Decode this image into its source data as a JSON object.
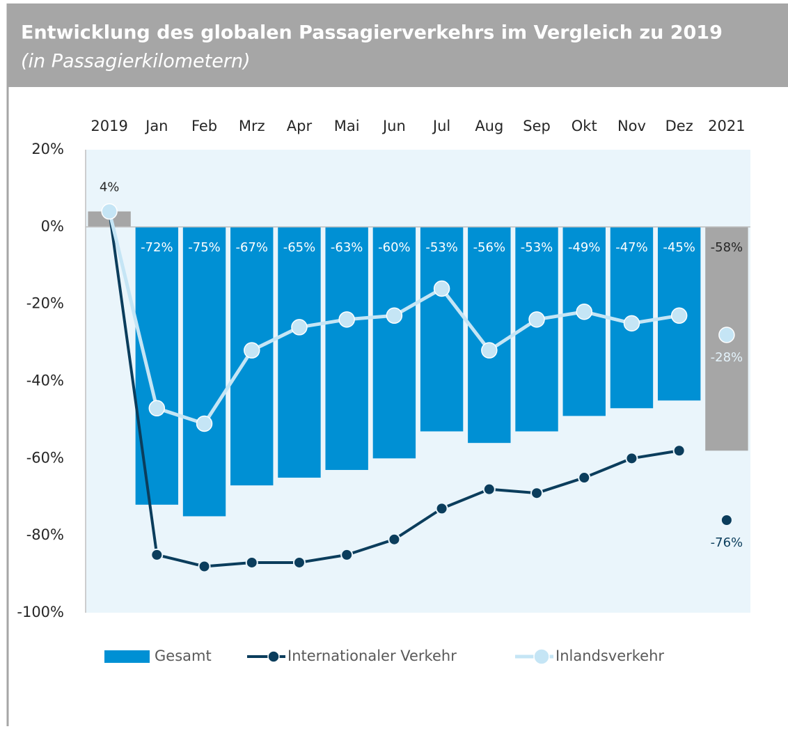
{
  "chart_data": {
    "type": "bar",
    "title": "Entwicklung des globalen Passagierverkehrs im Vergleich zu 2019",
    "subtitle": "(in Passagierkilometern)",
    "categories": [
      "2019",
      "Jan",
      "Feb",
      "Mrz",
      "Apr",
      "Mai",
      "Jun",
      "Jul",
      "Aug",
      "Sep",
      "Okt",
      "Nov",
      "Dez",
      "2021"
    ],
    "series": [
      {
        "name": "Gesamt",
        "type": "bar",
        "color": "#0090d4",
        "colors": [
          "#a6a6a6",
          "#0090d4",
          "#0090d4",
          "#0090d4",
          "#0090d4",
          "#0090d4",
          "#0090d4",
          "#0090d4",
          "#0090d4",
          "#0090d4",
          "#0090d4",
          "#0090d4",
          "#0090d4",
          "#a6a6a6"
        ],
        "values": [
          4,
          -72,
          -75,
          -67,
          -65,
          -63,
          -60,
          -53,
          -56,
          -53,
          -49,
          -47,
          -45,
          -58
        ],
        "value_labels": [
          "4%",
          "-72%",
          "-75%",
          "-67%",
          "-65%",
          "-63%",
          "-60%",
          "-53%",
          "-56%",
          "-53%",
          "-49%",
          "-47%",
          "-45%",
          "-58%"
        ]
      },
      {
        "name": "Internationaler Verkehr",
        "type": "line",
        "color": "#0b3d5c",
        "values": [
          4,
          -85,
          -88,
          -87,
          -87,
          -85,
          -81,
          -73,
          -68,
          -69,
          -65,
          -60,
          -58,
          -76
        ],
        "value_labels": [
          null,
          null,
          null,
          null,
          null,
          null,
          null,
          null,
          null,
          null,
          null,
          null,
          null,
          "-76%"
        ]
      },
      {
        "name": "Inlandsverkehr",
        "type": "line",
        "color": "#c5e5f5",
        "values": [
          4,
          -47,
          -51,
          -32,
          -26,
          -24,
          -23,
          -16,
          -32,
          -24,
          -22,
          -25,
          -23,
          -28
        ],
        "value_labels": [
          null,
          null,
          null,
          null,
          null,
          null,
          null,
          null,
          null,
          null,
          null,
          null,
          null,
          "-28%"
        ]
      }
    ],
    "ylim": [
      -100,
      20
    ],
    "yticks": [
      {
        "value": 20,
        "label": "20%"
      },
      {
        "value": 0,
        "label": "0%"
      },
      {
        "value": -20,
        "label": "-20%"
      },
      {
        "value": -40,
        "label": "-40%"
      },
      {
        "value": -60,
        "label": "-60%"
      },
      {
        "value": -80,
        "label": "-80%"
      },
      {
        "value": -100,
        "label": "-100%"
      }
    ],
    "grid": false,
    "legend": "bottom"
  }
}
